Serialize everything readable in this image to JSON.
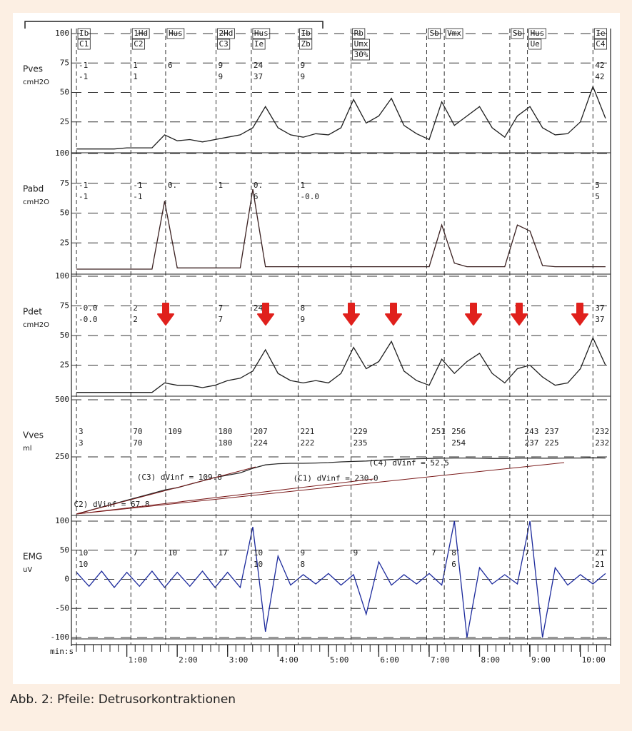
{
  "caption": "Abb. 2: Pfeile: Detrusorkontraktionen",
  "events": [
    {
      "x": 0,
      "labels": [
        "Ib",
        "C1"
      ]
    },
    {
      "x": 1.08,
      "labels": [
        "1Hd",
        "C2"
      ]
    },
    {
      "x": 1.77,
      "labels": [
        "Hus"
      ]
    },
    {
      "x": 2.77,
      "labels": [
        "2Hd",
        "C3"
      ]
    },
    {
      "x": 3.47,
      "labels": [
        "Hus",
        "Ie"
      ]
    },
    {
      "x": 4.4,
      "labels": [
        "Ib",
        "Zb"
      ]
    },
    {
      "x": 5.45,
      "labels": [
        "Rb",
        "Umx",
        "30%"
      ]
    },
    {
      "x": 6.95,
      "labels": [
        "Sb"
      ]
    },
    {
      "x": 7.3,
      "labels": [
        "Vmx"
      ]
    },
    {
      "x": 8.6,
      "labels": [
        "Sb"
      ]
    },
    {
      "x": 8.95,
      "labels": [
        "Hus",
        "Ue"
      ]
    },
    {
      "x": 10.25,
      "labels": [
        "Ie",
        "C4"
      ]
    }
  ],
  "chart_data": [
    {
      "type": "line",
      "ylabel": "Pves",
      "unit": "cmH2O",
      "x": [
        0,
        0.25,
        0.5,
        0.75,
        1,
        1.25,
        1.5,
        1.75,
        2,
        2.25,
        2.5,
        2.75,
        3,
        3.25,
        3.5,
        3.75,
        4,
        4.25,
        4.5,
        4.75,
        5,
        5.25,
        5.5,
        5.75,
        6,
        6.25,
        6.5,
        6.75,
        7,
        7.25,
        7.5,
        7.75,
        8,
        8.25,
        8.5,
        8.75,
        9,
        9.25,
        9.5,
        9.75,
        10,
        10.25,
        10.5
      ],
      "series": [
        {
          "color": "#1e1e1e",
          "values": [
            2,
            2,
            2,
            2,
            3,
            3,
            3,
            14,
            9,
            10,
            8,
            10,
            12,
            14,
            20,
            38,
            20,
            14,
            12,
            15,
            14,
            20,
            44,
            24,
            30,
            45,
            22,
            15,
            10,
            42,
            22,
            30,
            38,
            20,
            12,
            30,
            38,
            20,
            14,
            15,
            25,
            55,
            28
          ]
        }
      ],
      "xlim": [
        -0.1,
        10.6
      ],
      "ylim": [
        0,
        100
      ],
      "yticks": [
        25,
        50,
        75,
        100
      ],
      "grid": true,
      "readings": [
        {
          "x": 0,
          "lines": [
            "-1",
            "-1"
          ]
        },
        {
          "x": 1.08,
          "lines": [
            "1",
            "1"
          ]
        },
        {
          "x": 1.77,
          "lines": [
            "6"
          ]
        },
        {
          "x": 2.77,
          "lines": [
            "9",
            "9"
          ]
        },
        {
          "x": 3.47,
          "lines": [
            "24",
            "37"
          ]
        },
        {
          "x": 4.4,
          "lines": [
            "9",
            "9"
          ]
        },
        {
          "x": 10.25,
          "lines": [
            "42",
            "42"
          ]
        }
      ]
    },
    {
      "type": "line",
      "ylabel": "Pabd",
      "unit": "cmH2O",
      "x": [
        0,
        0.25,
        0.5,
        0.75,
        1,
        1.25,
        1.5,
        1.75,
        2,
        2.25,
        2.5,
        2.75,
        3,
        3.25,
        3.5,
        3.75,
        4,
        4.25,
        4.5,
        4.75,
        5,
        5.25,
        5.5,
        5.75,
        6,
        6.25,
        6.5,
        6.75,
        7,
        7.25,
        7.5,
        7.75,
        8,
        8.25,
        8.5,
        8.75,
        9,
        9.25,
        9.5,
        9.75,
        10,
        10.25,
        10.5
      ],
      "series": [
        {
          "color": "#3a2020",
          "values": [
            3,
            3,
            3,
            3,
            3,
            3,
            3,
            60,
            4,
            4,
            4,
            4,
            4,
            4,
            70,
            5,
            5,
            5,
            5,
            5,
            5,
            5,
            5,
            5,
            5,
            5,
            5,
            5,
            5,
            40,
            8,
            5,
            5,
            5,
            5,
            40,
            35,
            6,
            5,
            5,
            5,
            5,
            5
          ]
        }
      ],
      "xlim": [
        -0.1,
        10.6
      ],
      "ylim": [
        0,
        100
      ],
      "yticks": [
        25,
        50,
        75,
        100
      ],
      "grid": true,
      "readings": [
        {
          "x": 0,
          "lines": [
            "-1",
            "-1"
          ]
        },
        {
          "x": 1.08,
          "lines": [
            "-1",
            "-1"
          ]
        },
        {
          "x": 1.77,
          "lines": [
            "0."
          ]
        },
        {
          "x": 2.77,
          "lines": [
            "1"
          ]
        },
        {
          "x": 3.47,
          "lines": [
            "0.",
            "6"
          ]
        },
        {
          "x": 4.4,
          "lines": [
            "1",
            "-0.0"
          ]
        },
        {
          "x": 10.25,
          "lines": [
            "5",
            "5"
          ]
        }
      ]
    },
    {
      "type": "line",
      "ylabel": "Pdet",
      "unit": "cmH2O",
      "x": [
        0,
        0.25,
        0.5,
        0.75,
        1,
        1.25,
        1.5,
        1.75,
        2,
        2.25,
        2.5,
        2.75,
        3,
        3.25,
        3.5,
        3.75,
        4,
        4.25,
        4.5,
        4.75,
        5,
        5.25,
        5.5,
        5.75,
        6,
        6.25,
        6.5,
        6.75,
        7,
        7.25,
        7.5,
        7.75,
        8,
        8.25,
        8.5,
        8.75,
        9,
        9.25,
        9.5,
        9.75,
        10,
        10.25,
        10.5
      ],
      "series": [
        {
          "color": "#1e1e1e",
          "values": [
            2,
            2,
            2,
            2,
            2,
            2,
            2,
            10,
            8,
            8,
            6,
            8,
            12,
            14,
            20,
            38,
            18,
            12,
            10,
            12,
            10,
            18,
            40,
            22,
            28,
            45,
            20,
            12,
            8,
            30,
            18,
            28,
            35,
            18,
            10,
            22,
            25,
            15,
            8,
            10,
            22,
            48,
            25
          ]
        }
      ],
      "xlim": [
        -0.1,
        10.6
      ],
      "ylim": [
        0,
        100
      ],
      "yticks": [
        25,
        50,
        75,
        100
      ],
      "grid": true,
      "readings": [
        {
          "x": 0,
          "lines": [
            "-0.0",
            "-0.0"
          ]
        },
        {
          "x": 1.08,
          "lines": [
            "2",
            "2"
          ]
        },
        {
          "x": 2.77,
          "lines": [
            "7",
            "7"
          ]
        },
        {
          "x": 3.47,
          "lines": [
            "24"
          ]
        },
        {
          "x": 4.4,
          "lines": [
            "8",
            "9"
          ]
        },
        {
          "x": 10.25,
          "lines": [
            "37",
            "37"
          ]
        }
      ]
    },
    {
      "type": "line",
      "ylabel": "Vves",
      "unit": "ml",
      "x": [
        0,
        0.25,
        0.5,
        0.75,
        1,
        1.25,
        1.5,
        1.75,
        2,
        2.25,
        2.5,
        2.75,
        3,
        3.25,
        3.5,
        3.75,
        4,
        4.25,
        4.5,
        4.75,
        5,
        5.25,
        5.5,
        5.75,
        6,
        6.25,
        6.5,
        6.75,
        7,
        7.25,
        7.5,
        7.75,
        8,
        8.25,
        8.5,
        8.75,
        9,
        9.25,
        9.5,
        9.75,
        10,
        10.25,
        10.5
      ],
      "series": [
        {
          "color": "#2a2a2a",
          "values": [
            0,
            15,
            30,
            45,
            60,
            75,
            90,
            105,
            115,
            130,
            145,
            160,
            170,
            180,
            200,
            215,
            220,
            222,
            222,
            223,
            225,
            228,
            230,
            232,
            235,
            238,
            240,
            242,
            243,
            244,
            245,
            245,
            244,
            243,
            243,
            244,
            245,
            244,
            244,
            245,
            245,
            246,
            245
          ]
        }
      ],
      "xlim": [
        -0.1,
        10.6
      ],
      "ylim": [
        0,
        500
      ],
      "yticks": [
        250,
        500
      ],
      "grid": true,
      "annotations": [
        {
          "x": 1.2,
          "y": 160,
          "text": "(C3) dVinf = 109.8"
        },
        {
          "x": 4.3,
          "y": 155,
          "text": "(C1) dVinf = 230.0"
        },
        {
          "x": -0.05,
          "y": 40,
          "text": "C2) dVinf = 67.8"
        },
        {
          "x": 5.8,
          "y": 222,
          "text": "(C4) dVinf = 52.5"
        }
      ],
      "readings": [
        {
          "x": 0,
          "lines": [
            "3",
            "3"
          ]
        },
        {
          "x": 1.08,
          "lines": [
            "70",
            "70"
          ]
        },
        {
          "x": 1.77,
          "lines": [
            "109"
          ]
        },
        {
          "x": 2.77,
          "lines": [
            "180",
            "180"
          ]
        },
        {
          "x": 3.47,
          "lines": [
            "207",
            "224"
          ]
        },
        {
          "x": 4.4,
          "lines": [
            "221",
            "222"
          ]
        },
        {
          "x": 5.45,
          "lines": [
            "229",
            "235"
          ]
        },
        {
          "x": 7.0,
          "lines": [
            "251"
          ]
        },
        {
          "x": 7.4,
          "lines": [
            "256",
            "254"
          ]
        },
        {
          "x": 8.85,
          "lines": [
            "243",
            "237"
          ]
        },
        {
          "x": 9.25,
          "lines": [
            "237",
            "225"
          ]
        },
        {
          "x": 10.25,
          "lines": [
            "232",
            "232"
          ]
        }
      ]
    },
    {
      "type": "line",
      "ylabel": "EMG",
      "unit": "uV",
      "x": [
        0,
        0.25,
        0.5,
        0.75,
        1,
        1.25,
        1.5,
        1.75,
        2,
        2.25,
        2.5,
        2.75,
        3,
        3.25,
        3.5,
        3.75,
        4,
        4.25,
        4.5,
        4.75,
        5,
        5.25,
        5.5,
        5.75,
        6,
        6.25,
        6.5,
        6.75,
        7,
        7.25,
        7.5,
        7.75,
        8,
        8.25,
        8.5,
        8.75,
        9,
        9.25,
        9.5,
        9.75,
        10,
        10.25,
        10.5
      ],
      "series": [
        {
          "color": "#1c2a9c",
          "values": [
            12,
            -12,
            14,
            -14,
            12,
            -12,
            14,
            -14,
            12,
            -12,
            14,
            -14,
            12,
            -14,
            90,
            -90,
            40,
            -10,
            8,
            -8,
            10,
            -10,
            8,
            -60,
            30,
            -10,
            8,
            -8,
            10,
            -10,
            100,
            -100,
            20,
            -8,
            8,
            -8,
            100,
            -100,
            20,
            -10,
            8,
            -8,
            10
          ]
        }
      ],
      "xlim": [
        -0.1,
        10.6
      ],
      "ylim": [
        -100,
        100
      ],
      "yticks": [
        -100,
        -50,
        0,
        50,
        100
      ],
      "grid": true,
      "xlabel": "min:s",
      "xticks": [
        {
          "value": 1,
          "label": "1:00"
        },
        {
          "value": 2,
          "label": "2:00"
        },
        {
          "value": 3,
          "label": "3:00"
        },
        {
          "value": 4,
          "label": "4:00"
        },
        {
          "value": 5,
          "label": "5:00"
        },
        {
          "value": 6,
          "label": "6:00"
        },
        {
          "value": 7,
          "label": "7:00"
        },
        {
          "value": 8,
          "label": "8:00"
        },
        {
          "value": 9,
          "label": "9:00"
        },
        {
          "value": 10,
          "label": "10:00"
        }
      ],
      "readings": [
        {
          "x": 0,
          "lines": [
            "10",
            "10"
          ]
        },
        {
          "x": 1.08,
          "lines": [
            "7"
          ]
        },
        {
          "x": 1.77,
          "lines": [
            "10"
          ]
        },
        {
          "x": 2.77,
          "lines": [
            "17"
          ]
        },
        {
          "x": 3.47,
          "lines": [
            "10",
            "10"
          ]
        },
        {
          "x": 4.4,
          "lines": [
            "9",
            "8"
          ]
        },
        {
          "x": 5.45,
          "lines": [
            "9"
          ]
        },
        {
          "x": 7.0,
          "lines": [
            "7"
          ]
        },
        {
          "x": 7.4,
          "lines": [
            "8",
            "6"
          ]
        },
        {
          "x": 8.85,
          "lines": [
            "7"
          ]
        },
        {
          "x": 10.25,
          "lines": [
            "21",
            "21"
          ]
        }
      ]
    }
  ]
}
